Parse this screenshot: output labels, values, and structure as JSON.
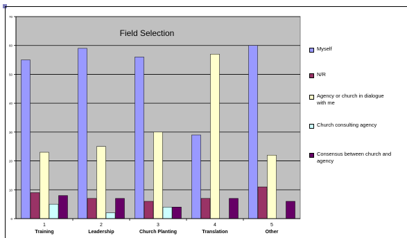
{
  "chart_data": {
    "type": "bar",
    "title": "Field Selection",
    "xlabel": "",
    "ylabel": "",
    "ylim": [
      0,
      70
    ],
    "yticks": [
      0,
      10,
      20,
      30,
      40,
      50,
      60,
      70
    ],
    "grid": "horizontal",
    "legend_position": "right",
    "categories": [
      "1",
      "2",
      "3",
      "4",
      "5"
    ],
    "category_names": [
      "Training",
      "Leadership",
      "Church Planting",
      "Translation",
      "Other"
    ],
    "series": [
      {
        "name": "Myself",
        "color": "#9999ff",
        "values": [
          55,
          59,
          56,
          29,
          60
        ]
      },
      {
        "name": "N/R",
        "color": "#993366",
        "values": [
          9,
          7,
          6,
          7,
          11
        ]
      },
      {
        "name": "Agency or church in dialogue with me",
        "color": "#ffffcc",
        "values": [
          23,
          25,
          30,
          57,
          22
        ]
      },
      {
        "name": "Church consulting agency",
        "color": "#ccffff",
        "values": [
          5,
          2,
          4,
          0,
          0
        ]
      },
      {
        "name": "Consensus between church and agency",
        "color": "#660066",
        "values": [
          8,
          7,
          4,
          7,
          6
        ]
      }
    ]
  }
}
